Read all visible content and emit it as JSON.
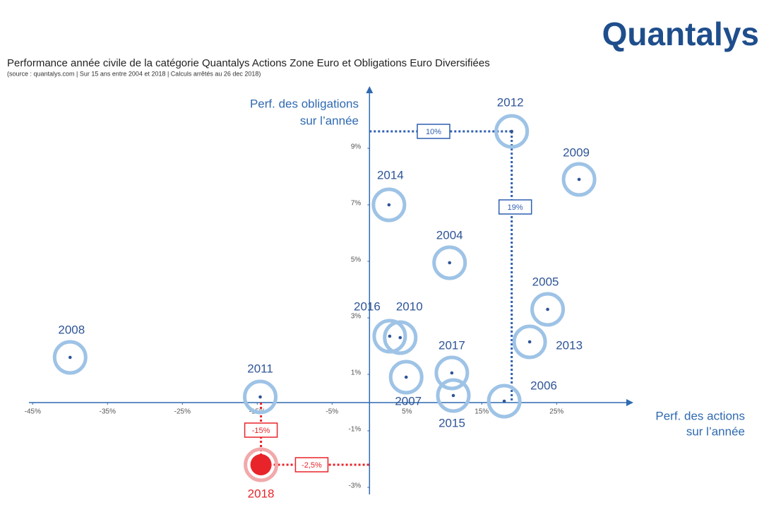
{
  "brand": "Quantalys",
  "chart_data": {
    "type": "scatter",
    "title": "Performance année civile de la catégorie Quantalys Actions Zone Euro et Obligations Euro Diversifiées",
    "subtitle": "(source : quantalys.com | Sur 15 ans entre 2004 et 2018 | Calculs arrêtés au 26 dec 2018)",
    "y_label": [
      "Perf. des obligations",
      "sur l’année"
    ],
    "x_label": [
      "Perf. des actions",
      "sur l’année"
    ],
    "point_labels": [
      "2008",
      "2011",
      "2018",
      "2014",
      "2004",
      "2009",
      "2012",
      "2005",
      "2013",
      "2016",
      "2010",
      "2017",
      "2007",
      "2015",
      "2006"
    ],
    "x": [
      -40,
      -14.6,
      -14.5,
      2.6,
      10.7,
      28,
      19,
      23.8,
      21.4,
      2.7,
      4.1,
      11,
      4.9,
      11.2,
      18
    ],
    "values": [
      1.6,
      0.2,
      -2.2,
      7,
      4.95,
      7.9,
      9.6,
      3.3,
      2.15,
      2.35,
      2.3,
      1.05,
      0.9,
      0.25,
      0.05
    ],
    "color": "#9ec3e6",
    "highlight_color": "#e8242a",
    "annotations": [
      "10%",
      "19%",
      "-15%",
      "-2,5%"
    ],
    "xlim": [
      -45.5,
      34.5
    ],
    "ylim": [
      -3.25,
      11
    ],
    "xticks": [
      {
        "value": -45,
        "label": "-45%"
      },
      {
        "value": -35,
        "label": "-35%"
      },
      {
        "value": -25,
        "label": "-25%"
      },
      {
        "value": -15,
        "label": "-15%"
      },
      {
        "value": -5,
        "label": "-5%"
      },
      {
        "value": 5,
        "label": "5%"
      },
      {
        "value": 15,
        "label": "15%"
      },
      {
        "value": 25,
        "label": "25%"
      }
    ],
    "yticks": [
      {
        "value": -3,
        "label": "-3%"
      },
      {
        "value": -1,
        "label": "-1%"
      },
      {
        "value": 1,
        "label": "1%"
      },
      {
        "value": 3,
        "label": "3%"
      },
      {
        "value": 5,
        "label": "5%"
      },
      {
        "value": 7,
        "label": "7%"
      },
      {
        "value": 9,
        "label": "9%"
      }
    ]
  }
}
